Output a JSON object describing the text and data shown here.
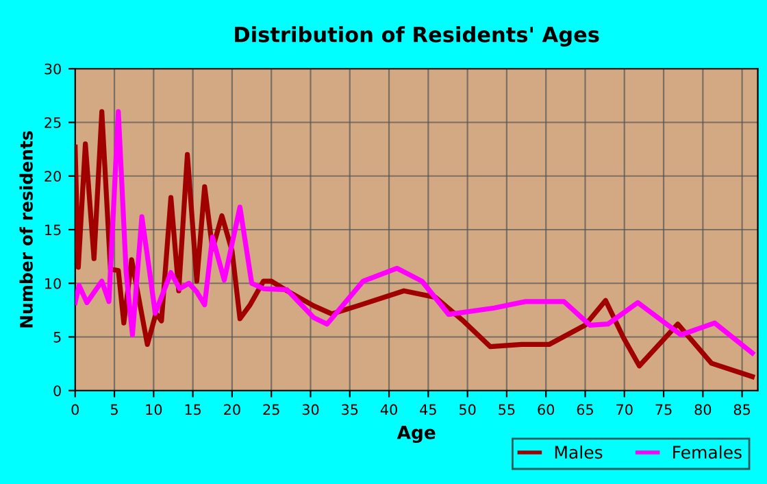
{
  "chart_data": {
    "type": "line",
    "title": "Distribution of Residents' Ages",
    "xlabel": "Age",
    "ylabel": "Number of residents",
    "xlim": [
      0,
      87
    ],
    "xticks": [
      0,
      5,
      10,
      15,
      20,
      25,
      30,
      35,
      40,
      45,
      50,
      55,
      60,
      65,
      70,
      75,
      80,
      85
    ],
    "ylim": [
      0,
      30
    ],
    "yticks": [
      0,
      5,
      10,
      15,
      20,
      25,
      30
    ],
    "grid": true,
    "legend": "bottom right",
    "marker": "none",
    "line_style": "solid",
    "series": [
      {
        "name": "Males",
        "color": "#a00000",
        "x": [
          0,
          0.4,
          1.3,
          2.4,
          3.4,
          4.5,
          5.5,
          6.2,
          7.2,
          9.2,
          10.3,
          11,
          12.2,
          13.2,
          14.3,
          15.5,
          16.5,
          17.5,
          18.7,
          20,
          21,
          22.3,
          24,
          25,
          27,
          30.4,
          32.7,
          36,
          41.9,
          45.9,
          49.3,
          52.9,
          56.9,
          60.4,
          65,
          67.6,
          69.9,
          71.9,
          76.8,
          81.1,
          86.3
        ],
        "values": [
          22.7,
          11.5,
          23,
          12.3,
          26,
          11.3,
          11.2,
          6.3,
          12.2,
          4.3,
          7.2,
          6.5,
          18,
          9.3,
          22,
          10.2,
          19,
          13.2,
          16.3,
          13,
          6.7,
          8,
          10.2,
          10.2,
          9.3,
          7.9,
          7.15,
          7.9,
          9.3,
          8.7,
          6.6,
          4.1,
          4.3,
          4.3,
          6.1,
          8.4,
          4.9,
          2.3,
          6.2,
          2.55,
          1.3
        ]
      },
      {
        "name": "Females",
        "color": "#ff00ff",
        "x": [
          0,
          0.5,
          1.5,
          3.4,
          4.3,
          5.5,
          6.5,
          7.3,
          8.5,
          9.5,
          10.2,
          12.2,
          13.3,
          14.5,
          15.5,
          16.5,
          17.5,
          19,
          21,
          22.5,
          24,
          27,
          30.4,
          32.1,
          36.7,
          41,
          44.2,
          47.6,
          53.4,
          57.4,
          62.3,
          65.6,
          67.9,
          71.7,
          77.2,
          81.5,
          86.3
        ],
        "values": [
          8.2,
          9.8,
          8.2,
          10.2,
          8.3,
          26,
          11,
          5.2,
          16.2,
          11,
          7.2,
          11,
          9.5,
          10,
          9.2,
          8,
          14.3,
          10.3,
          17.1,
          10,
          9.5,
          9.4,
          6.8,
          6.2,
          10.2,
          11.4,
          10.2,
          7.1,
          7.7,
          8.3,
          8.3,
          6.1,
          6.2,
          8.2,
          5.2,
          6.3,
          3.5
        ]
      }
    ]
  }
}
